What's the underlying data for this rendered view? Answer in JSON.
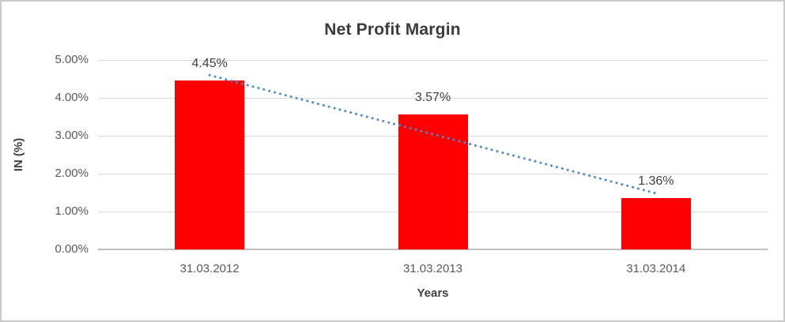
{
  "chart_data": {
    "type": "bar",
    "title": "Net Profit Margin",
    "xlabel": "Years",
    "ylabel": "IN (%)",
    "categories": [
      "31.03.2012",
      "31.03.2013",
      "31.03.2014"
    ],
    "values": [
      4.45,
      3.57,
      1.36
    ],
    "value_labels": [
      "4.45%",
      "3.57%",
      "1.36%"
    ],
    "yticks": [
      "0.00%",
      "1.00%",
      "2.00%",
      "3.00%",
      "4.00%",
      "5.00%"
    ],
    "ylim": [
      0,
      5
    ],
    "grid": true,
    "legend": "none",
    "bar_color": "#FF0000",
    "trendline": {
      "type": "linear",
      "style": "dotted",
      "color": "#4E8AC8",
      "start_value": 4.6,
      "end_value": 1.48
    }
  },
  "colors": {
    "background": "#FFFFFF",
    "frame_border": "#C9C9C9",
    "gridline": "#D9D9D9",
    "axis_line": "#BFBFBF",
    "title_text": "#3B3B3B",
    "tick_text": "#595959",
    "label_text": "#404040"
  }
}
